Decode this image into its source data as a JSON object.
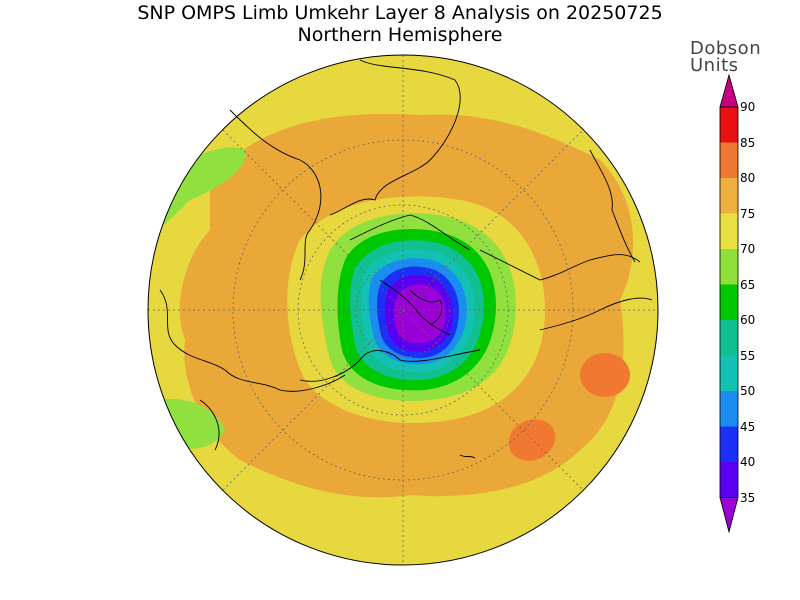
{
  "title": "SNP OMPS Limb Umkehr Layer 8 Analysis on 20250725",
  "subtitle": "Northern Hemisphere",
  "colorbar": {
    "unit_line1": "Dobson",
    "unit_line2": "Units",
    "levels": [
      "35",
      "40",
      "45",
      "50",
      "55",
      "60",
      "65",
      "70",
      "75",
      "80",
      "85",
      "90"
    ],
    "colors": [
      "#9b00d6",
      "#5a00f0",
      "#1b2ff5",
      "#1a8ef0",
      "#12c1b4",
      "#10c090",
      "#00c800",
      "#8fe03a",
      "#e8e040",
      "#f0b040",
      "#f07830",
      "#e81010",
      "#c80080"
    ]
  }
}
